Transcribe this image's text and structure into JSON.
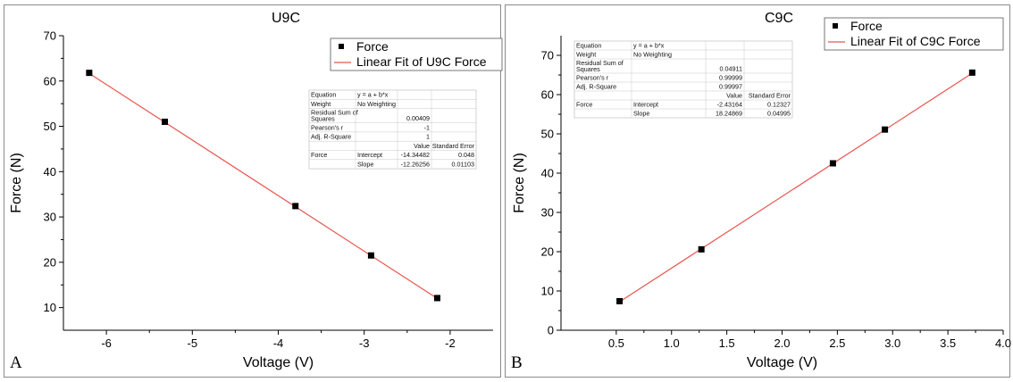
{
  "chart_data": [
    {
      "panel": "A",
      "type": "scatter",
      "title": "U9C",
      "xlabel": "Voltage (V)",
      "ylabel": "Force (N)",
      "xlim": [
        -6.5,
        -1.5
      ],
      "ylim": [
        5,
        70
      ],
      "xticks": [
        -6,
        -5,
        -4,
        -3,
        -2
      ],
      "yticks": [
        10,
        20,
        30,
        40,
        50,
        60,
        70
      ],
      "grid": false,
      "legend_position": "top-right",
      "series": [
        {
          "name": "Force",
          "x": [
            -6.2,
            -5.32,
            -3.8,
            -2.92,
            -2.15
          ],
          "y": [
            61.8,
            51.0,
            32.4,
            21.5,
            12.1
          ]
        },
        {
          "name": "Linear Fit of U9C Force",
          "fit": {
            "intercept": -14.34482,
            "slope": -12.26256
          }
        }
      ],
      "stats_table": {
        "rows": [
          [
            "Equation",
            "y = a + b*x",
            "",
            ""
          ],
          [
            "Weight",
            "No Weighting",
            "",
            ""
          ],
          [
            "Residual Sum of Squares",
            "",
            "0.00409",
            ""
          ],
          [
            "Pearson's r",
            "",
            "-1",
            ""
          ],
          [
            "Adj. R-Square",
            "",
            "1",
            ""
          ],
          [
            "",
            "",
            "Value",
            "Standard Error"
          ],
          [
            "Force",
            "Intercept",
            "-14.34482",
            "0.048"
          ],
          [
            "",
            "Slope",
            "-12.26256",
            "0.01103"
          ]
        ]
      }
    },
    {
      "panel": "B",
      "type": "scatter",
      "title": "C9C",
      "xlabel": "Voltage (V)",
      "ylabel": "Force (N)",
      "xlim": [
        0,
        4.0
      ],
      "ylim": [
        0,
        75
      ],
      "xticks": [
        0.5,
        1.0,
        1.5,
        2.0,
        2.5,
        3.0,
        3.5,
        4.0
      ],
      "yticks": [
        0,
        10,
        20,
        30,
        40,
        50,
        60,
        70
      ],
      "grid": false,
      "legend_position": "top-right",
      "series": [
        {
          "name": "Force",
          "x": [
            0.53,
            1.27,
            2.46,
            2.93,
            3.72
          ],
          "y": [
            7.4,
            20.6,
            42.5,
            51.1,
            65.6
          ]
        },
        {
          "name": "Linear Fit of C9C Force",
          "fit": {
            "intercept": -2.43164,
            "slope": 18.24869
          }
        }
      ],
      "stats_table": {
        "rows": [
          [
            "Equation",
            "y = a + b*x",
            "",
            ""
          ],
          [
            "Weight",
            "No Weighting",
            "",
            ""
          ],
          [
            "Residual Sum of Squares",
            "",
            "0.04911",
            ""
          ],
          [
            "Pearson's r",
            "",
            "0.99999",
            ""
          ],
          [
            "Adj. R-Square",
            "",
            "0.99997",
            ""
          ],
          [
            "",
            "",
            "Value",
            "Standard Error"
          ],
          [
            "Force",
            "Intercept",
            "-2.43164",
            "0.12327"
          ],
          [
            "",
            "Slope",
            "18.24869",
            "0.04995"
          ]
        ]
      }
    }
  ],
  "colors": {
    "fit_line": "#e8554f",
    "marker": "#000000",
    "axis": "#000000",
    "table_border": "#c8c8c8"
  }
}
